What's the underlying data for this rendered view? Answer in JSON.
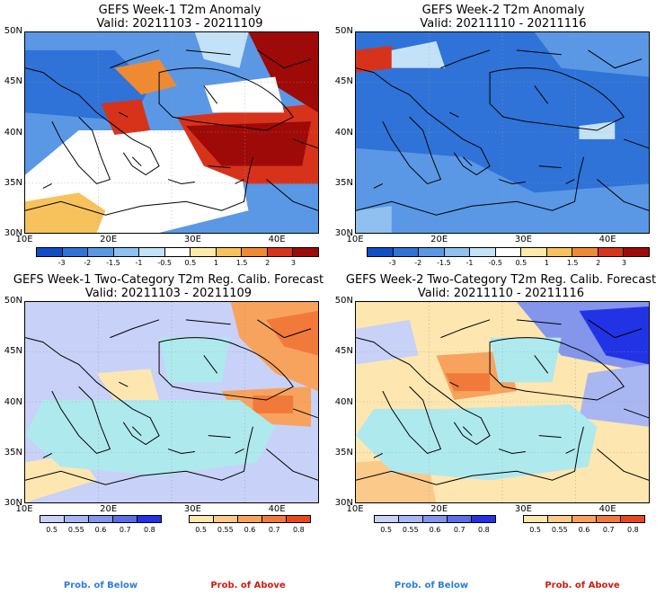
{
  "panels": [
    {
      "title_line1": "GEFS Week-1 T2m Anomaly",
      "title_line2": "Valid: 20211103 - 20211109"
    },
    {
      "title_line1": "GEFS Week-2 T2m Anomaly",
      "title_line2": "Valid: 20211110 - 20211116"
    },
    {
      "title_line1": "GEFS Week-1 Two-Category T2m Reg. Calib. Forecast",
      "title_line2": "Valid: 20211103 - 20211109"
    },
    {
      "title_line1": "GEFS Week-2 Two-Category T2m Reg. Calib. Forecast",
      "title_line2": "Valid: 20211110 - 20211116"
    }
  ],
  "lat_labels": [
    "50N",
    "45N",
    "40N",
    "35N",
    "30N"
  ],
  "lon_labels": [
    "10E",
    "20E",
    "30E",
    "40E"
  ],
  "anomaly_scale": {
    "labels": [
      "-3",
      "-2",
      "-1.5",
      "-1",
      "-0.5",
      "0.5",
      "1",
      "1.5",
      "2",
      "3"
    ],
    "colors": [
      "#0f4ec6",
      "#2f73d8",
      "#5a98e6",
      "#8fc0f0",
      "#c4e2f7",
      "#ffffff",
      "#fde9a8",
      "#f7c25c",
      "#ef8a33",
      "#d7331b",
      "#9e0a08"
    ]
  },
  "prob_below": {
    "labels": [
      "0.5",
      "0.55",
      "0.6",
      "0.7",
      "0.8"
    ],
    "colors": [
      "#c8d1f7",
      "#a8b6f2",
      "#8495ec",
      "#5a6ee6",
      "#2233e6"
    ]
  },
  "prob_above": {
    "labels": [
      "0.5",
      "0.55",
      "0.6",
      "0.7",
      "0.8"
    ],
    "colors": [
      "#fde6b0",
      "#fbc98a",
      "#f7a35e",
      "#f17a3a",
      "#e8491c"
    ]
  },
  "footer": {
    "below": "Prob. of Below",
    "above": "Prob. of Above",
    "below_color": "#2a7fd6",
    "above_color": "#d21a0f"
  }
}
